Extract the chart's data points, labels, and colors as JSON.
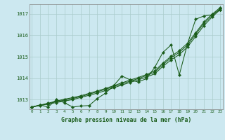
{
  "title": "Graphe pression niveau de la mer (hPa)",
  "bg_color": "#cce8f0",
  "grid_color": "#aacccc",
  "line_color": "#1a5c1a",
  "xlim": [
    -0.3,
    23.3
  ],
  "ylim": [
    1012.55,
    1017.45
  ],
  "yticks": [
    1013,
    1014,
    1015,
    1016,
    1017
  ],
  "xticks": [
    0,
    1,
    2,
    3,
    4,
    5,
    6,
    7,
    8,
    9,
    10,
    11,
    12,
    13,
    14,
    15,
    16,
    17,
    18,
    19,
    20,
    21,
    22,
    23
  ],
  "series_actual": [
    1012.65,
    1012.75,
    1012.65,
    1013.0,
    1012.85,
    1012.65,
    1012.7,
    1012.72,
    1013.05,
    1013.3,
    1013.65,
    1014.1,
    1013.92,
    1013.82,
    1013.98,
    1014.5,
    1015.2,
    1015.55,
    1014.15,
    1015.6,
    1016.75,
    1016.9,
    1016.95,
    1017.2
  ],
  "series_lin1": [
    1012.65,
    1012.72,
    1012.79,
    1012.86,
    1012.93,
    1013.0,
    1013.1,
    1013.2,
    1013.3,
    1013.42,
    1013.55,
    1013.68,
    1013.8,
    1013.92,
    1014.05,
    1014.2,
    1014.55,
    1014.85,
    1015.1,
    1015.45,
    1015.95,
    1016.45,
    1016.85,
    1017.2
  ],
  "series_lin2": [
    1012.65,
    1012.73,
    1012.81,
    1012.9,
    1012.98,
    1013.05,
    1013.14,
    1013.25,
    1013.36,
    1013.48,
    1013.6,
    1013.73,
    1013.86,
    1013.98,
    1014.12,
    1014.28,
    1014.63,
    1014.95,
    1015.2,
    1015.55,
    1016.05,
    1016.55,
    1016.92,
    1017.25
  ],
  "series_lin3": [
    1012.65,
    1012.74,
    1012.83,
    1012.93,
    1013.02,
    1013.09,
    1013.18,
    1013.29,
    1013.4,
    1013.52,
    1013.65,
    1013.78,
    1013.91,
    1014.03,
    1014.17,
    1014.34,
    1014.7,
    1015.02,
    1015.28,
    1015.63,
    1016.12,
    1016.62,
    1016.98,
    1017.3
  ]
}
